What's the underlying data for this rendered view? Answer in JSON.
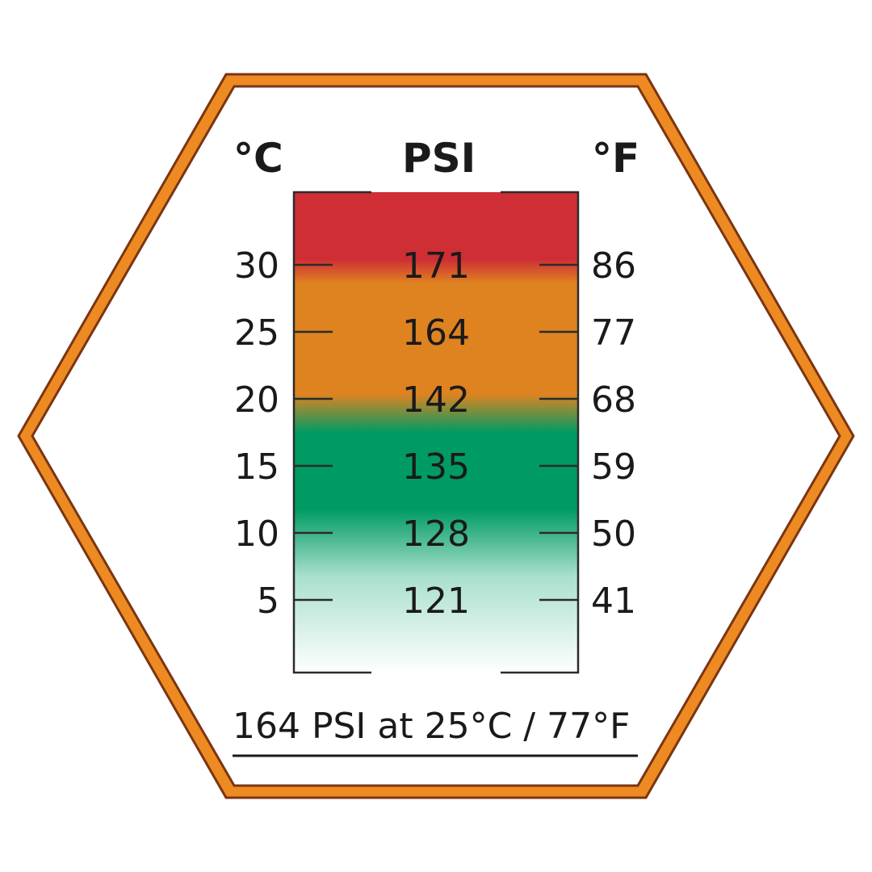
{
  "headers": {
    "celsius": "°C",
    "psi": "PSI",
    "fahrenheit": "°F"
  },
  "scale": {
    "rows": [
      {
        "celsius": "30",
        "psi": "171",
        "fahrenheit": "86"
      },
      {
        "celsius": "25",
        "psi": "164",
        "fahrenheit": "77"
      },
      {
        "celsius": "20",
        "psi": "142",
        "fahrenheit": "68"
      },
      {
        "celsius": "15",
        "psi": "135",
        "fahrenheit": "59"
      },
      {
        "celsius": "10",
        "psi": "128",
        "fahrenheit": "50"
      },
      {
        "celsius": "5",
        "psi": "121",
        "fahrenheit": "41"
      }
    ]
  },
  "caption": "164 PSI at 25°C / 77°F",
  "colors": {
    "frame_orange": "#ee8a22",
    "frame_brown": "#8a3b0f",
    "zone_red": "#cf2e35",
    "zone_orange": "#df8320",
    "zone_green": "#009b63",
    "zone_light": "#a9e0cd"
  }
}
